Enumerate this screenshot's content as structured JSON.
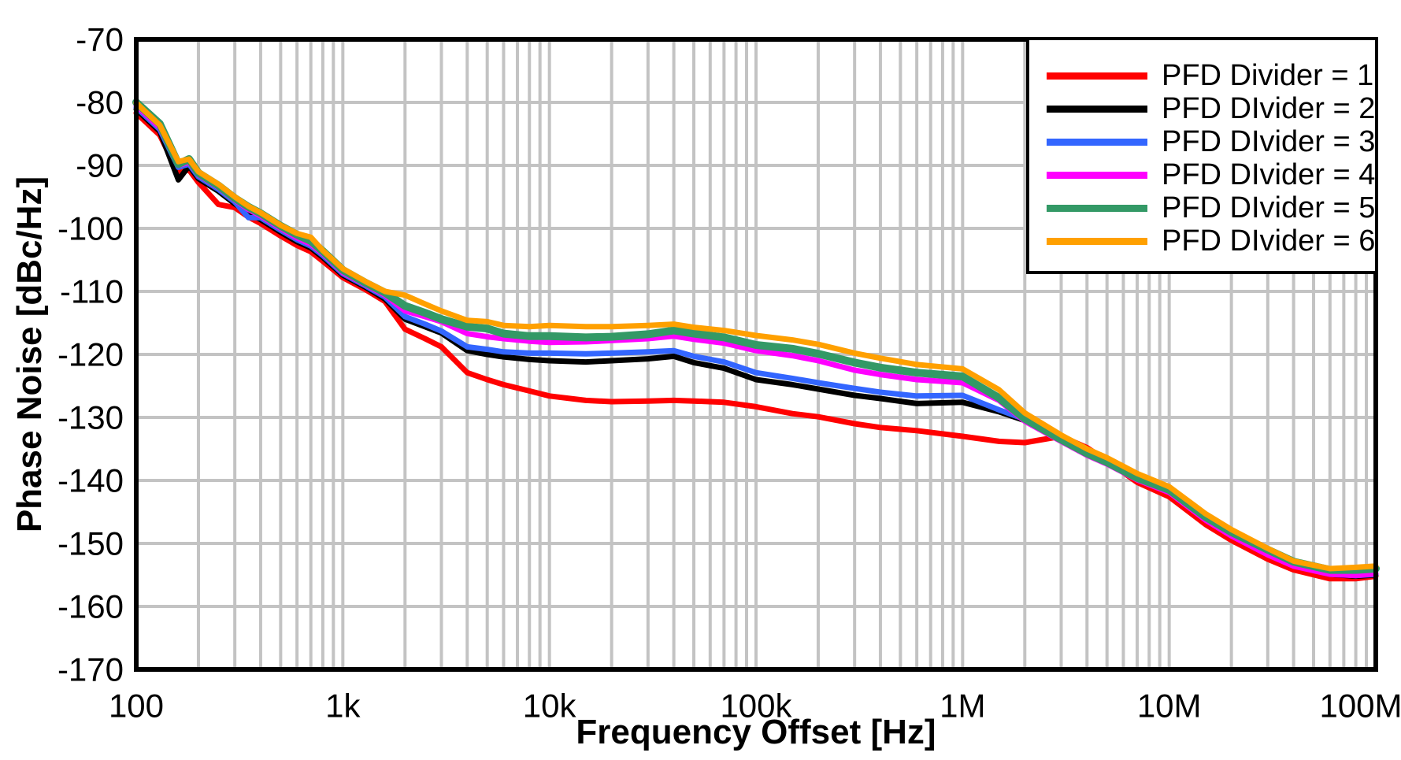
{
  "figure": {
    "xlabel": "Frequency Offset [Hz]",
    "ylabel": "Phase Noise [dBc/Hz]",
    "background_color": "#FFFFFF",
    "frame_color": "#000000",
    "grid_color": "#C3C3C3"
  },
  "chart_data": {
    "type": "line",
    "title": "",
    "xlabel": "Frequency Offset [Hz]",
    "ylabel": "Phase Noise [dBc/Hz]",
    "x_scale": "log",
    "x_range": [
      100,
      100000000
    ],
    "y_range": [
      -170,
      -70
    ],
    "grid": "on (log minor vertical, 10 dB horizontal)",
    "legend_position": "top-right inside plot",
    "x_tick_values": [
      100,
      1000,
      10000,
      100000,
      1000000,
      10000000,
      100000000
    ],
    "x_tick_labels": [
      "100",
      "1k",
      "10k",
      "100k",
      "1M",
      "10M",
      "100M"
    ],
    "y_tick_values": [
      -70,
      -80,
      -90,
      -100,
      -110,
      -120,
      -130,
      -140,
      -150,
      -160,
      -170
    ],
    "y_tick_labels": [
      "-70",
      "-80",
      "-90",
      "-100",
      "-110",
      "-120",
      "-130",
      "-140",
      "-150",
      "-160",
      "-170"
    ],
    "x": [
      100,
      130,
      160,
      180,
      200,
      250,
      300,
      350,
      400,
      500,
      600,
      700,
      800,
      1000,
      1300,
      1600,
      2000,
      2500,
      3000,
      4000,
      5000,
      6000,
      8000,
      10000,
      15000,
      20000,
      30000,
      40000,
      50000,
      70000,
      100000,
      150000,
      200000,
      300000,
      400000,
      600000,
      1000000,
      1500000,
      2000000,
      3000000,
      4000000,
      5000000,
      7000000,
      10000000,
      15000000,
      20000000,
      30000000,
      40000000,
      60000000,
      80000000,
      100000000
    ],
    "series": [
      {
        "name": "PFD Divider = 1",
        "color": "#FF0000",
        "stroke_width": 7,
        "values": [
          -81.7,
          -85.2,
          -91.2,
          -90.7,
          -92.7,
          -96.2,
          -96.7,
          -98.2,
          -99.2,
          -101.2,
          -102.7,
          -103.7,
          -105.2,
          -107.8,
          -109.8,
          -111.6,
          -116.0,
          -117.5,
          -118.8,
          -122.9,
          -124.0,
          -124.8,
          -125.8,
          -126.6,
          -127.3,
          -127.5,
          -127.4,
          -127.3,
          -127.4,
          -127.6,
          -128.3,
          -129.4,
          -129.9,
          -131.0,
          -131.6,
          -132.1,
          -133.0,
          -133.8,
          -134.0,
          -133.0,
          -134.8,
          -136.9,
          -140.3,
          -142.6,
          -147.0,
          -149.5,
          -152.5,
          -154.2,
          -155.6,
          -155.6,
          -155.2
        ]
      },
      {
        "name": "PFD DIvider = 2",
        "color": "#000000",
        "stroke_width": 7,
        "values": [
          -81.1,
          -84.6,
          -92.3,
          -90.1,
          -92.1,
          -94.1,
          -96.1,
          -97.6,
          -98.6,
          -100.6,
          -102.1,
          -103.1,
          -104.6,
          -107.4,
          -109.4,
          -111.2,
          -114.4,
          -115.6,
          -116.6,
          -119.4,
          -120.0,
          -120.4,
          -120.8,
          -121.0,
          -121.2,
          -121.0,
          -120.7,
          -120.3,
          -121.3,
          -122.2,
          -124.0,
          -124.8,
          -125.5,
          -126.5,
          -127.0,
          -127.8,
          -127.6,
          -129.1,
          -130.5,
          -133.7,
          -135.9,
          -137.3,
          -139.8,
          -141.8,
          -146.2,
          -148.7,
          -151.7,
          -153.5,
          -154.9,
          -155.2,
          -155.0
        ]
      },
      {
        "name": "PFD DIvider = 3",
        "color": "#3366FF",
        "stroke_width": 7,
        "values": [
          -80.8,
          -84.3,
          -90.3,
          -89.8,
          -91.8,
          -93.8,
          -95.8,
          -98.3,
          -98.3,
          -100.3,
          -101.8,
          -102.8,
          -104.3,
          -107.2,
          -109.2,
          -110.9,
          -114.0,
          -115.2,
          -116.3,
          -118.8,
          -119.2,
          -119.6,
          -119.8,
          -119.8,
          -119.9,
          -119.8,
          -119.6,
          -119.4,
          -120.3,
          -121.2,
          -122.9,
          -123.8,
          -124.5,
          -125.4,
          -126.0,
          -126.6,
          -126.5,
          -128.8,
          -130.3,
          -133.6,
          -135.9,
          -137.2,
          -139.7,
          -141.7,
          -146.1,
          -148.6,
          -151.6,
          -153.4,
          -154.8,
          -155.1,
          -154.9
        ]
      },
      {
        "name": "PFD DIvider = 4",
        "color": "#FF00FF",
        "stroke_width": 7,
        "values": [
          -80.5,
          -84.0,
          -90.0,
          -89.5,
          -91.5,
          -93.5,
          -95.5,
          -97.0,
          -98.0,
          -100.0,
          -101.5,
          -102.5,
          -104.0,
          -107.0,
          -109.0,
          -110.6,
          -113.1,
          -114.0,
          -114.8,
          -116.7,
          -117.2,
          -117.5,
          -117.9,
          -118.1,
          -118.0,
          -117.8,
          -117.5,
          -117.1,
          -117.6,
          -118.2,
          -119.4,
          -120.2,
          -121.0,
          -122.5,
          -123.2,
          -124.0,
          -124.5,
          -127.3,
          -130.6,
          -133.8,
          -136.0,
          -137.4,
          -139.9,
          -141.9,
          -146.3,
          -148.8,
          -151.8,
          -153.6,
          -154.9,
          -155.1,
          -154.8
        ]
      },
      {
        "name": "PFD DIvider = 5",
        "color": "#339966",
        "stroke_width": 10,
        "values": [
          -80.0,
          -83.4,
          -89.8,
          -89.0,
          -91.2,
          -93.2,
          -95.2,
          -96.6,
          -97.6,
          -99.6,
          -101.0,
          -102.0,
          -103.6,
          -106.6,
          -108.7,
          -110.2,
          -112.3,
          -113.4,
          -114.4,
          -115.6,
          -115.9,
          -116.7,
          -117.1,
          -117.1,
          -117.3,
          -117.2,
          -116.8,
          -116.2,
          -116.7,
          -117.3,
          -118.5,
          -119.1,
          -119.9,
          -121.3,
          -122.1,
          -122.9,
          -123.5,
          -126.9,
          -130.2,
          -133.5,
          -135.7,
          -137.1,
          -139.6,
          -141.5,
          -145.8,
          -148.2,
          -151.0,
          -152.9,
          -154.2,
          -154.2,
          -154.0
        ]
      },
      {
        "name": "PFD DIvider = 6",
        "color": "#FFA000",
        "stroke_width": 7,
        "values": [
          -80.1,
          -83.6,
          -89.4,
          -89.0,
          -91.0,
          -93.0,
          -95.0,
          -96.5,
          -97.5,
          -99.5,
          -100.8,
          -101.4,
          -103.5,
          -106.4,
          -108.5,
          -110.0,
          -110.6,
          -112.0,
          -113.1,
          -114.6,
          -114.8,
          -115.4,
          -115.6,
          -115.4,
          -115.6,
          -115.6,
          -115.4,
          -115.2,
          -115.7,
          -116.2,
          -117.0,
          -117.7,
          -118.4,
          -119.8,
          -120.6,
          -121.6,
          -122.3,
          -125.6,
          -129.3,
          -132.8,
          -135.0,
          -136.4,
          -138.9,
          -141.0,
          -145.3,
          -147.8,
          -150.8,
          -152.8,
          -154.0,
          -153.8,
          -153.6
        ]
      }
    ]
  }
}
